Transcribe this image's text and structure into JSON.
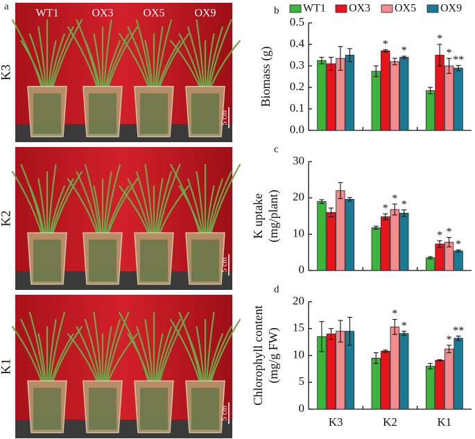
{
  "photo_panel": {
    "label": "a",
    "columns": [
      "WT1",
      "OX3",
      "OX5",
      "OX9"
    ],
    "rows": [
      "K3",
      "K2",
      "K1"
    ],
    "scale": "5 cm"
  },
  "chart_data": [
    {
      "type": "bar",
      "panel": "b",
      "ylabel": "Biomass (g)",
      "ylim": [
        0,
        0.5
      ],
      "yticks": [
        {
          "value": 0,
          "label": "0.0"
        },
        0.1,
        0.2,
        0.3,
        0.4,
        0.5
      ],
      "series": [
        {
          "name": "WT1",
          "color": "#3db53d",
          "values": [
            0.325,
            0.275,
            0.185
          ],
          "errors": [
            0.015,
            0.025,
            0.015
          ],
          "annotations": [
            null,
            null,
            null
          ]
        },
        {
          "name": "OX3",
          "color": "#e8141b",
          "values": [
            0.31,
            0.37,
            0.35
          ],
          "errors": [
            0.03,
            0.005,
            0.05
          ],
          "annotations": [
            null,
            "*",
            "*"
          ]
        },
        {
          "name": "OX5",
          "color": "#f28b8e",
          "values": [
            0.335,
            0.32,
            0.3
          ],
          "errors": [
            0.055,
            0.015,
            0.035
          ],
          "annotations": [
            null,
            null,
            "*"
          ]
        },
        {
          "name": "OX9",
          "color": "#1a7a94",
          "values": [
            0.35,
            0.34,
            0.29
          ],
          "errors": [
            0.03,
            0.005,
            0.012
          ],
          "annotations": [
            null,
            "*",
            "**"
          ]
        }
      ]
    },
    {
      "type": "bar",
      "panel": "c",
      "ylabel": [
        "K uptake",
        "(mg/plant)"
      ],
      "ylim": [
        0,
        30
      ],
      "yticks": [
        0,
        10,
        20,
        30
      ],
      "series": [
        {
          "color": "#3db53d",
          "values": [
            19,
            11.8,
            3.5
          ],
          "errors": [
            0.5,
            0.4,
            0.3
          ],
          "annotations": [
            null,
            null,
            null
          ]
        },
        {
          "color": "#e8141b",
          "values": [
            16,
            14.8,
            7.3
          ],
          "errors": [
            1.2,
            0.8,
            0.9
          ],
          "annotations": [
            null,
            "*",
            "*"
          ]
        },
        {
          "color": "#f28b8e",
          "values": [
            22,
            16.8,
            7.8
          ],
          "errors": [
            2.2,
            1.5,
            1.3
          ],
          "annotations": [
            null,
            "*",
            "*"
          ]
        },
        {
          "color": "#1a7a94",
          "values": [
            19.6,
            15.8,
            5.4
          ],
          "errors": [
            0.5,
            0.9,
            0.3
          ],
          "annotations": [
            null,
            "*",
            "*"
          ]
        }
      ]
    },
    {
      "type": "bar",
      "panel": "d",
      "ylabel": [
        "Chlorophyll content",
        "(mg/g FW)"
      ],
      "categories": [
        "K3",
        "K2",
        "K1"
      ],
      "ylim": [
        0,
        20
      ],
      "yticks": [
        0,
        5,
        10,
        15,
        20
      ],
      "series": [
        {
          "color": "#3db53d",
          "values": [
            13.5,
            9.5,
            8
          ],
          "errors": [
            2.8,
            1,
            0.5
          ],
          "annotations": [
            null,
            null,
            null
          ]
        },
        {
          "color": "#e8141b",
          "values": [
            14,
            10.8,
            9.1
          ],
          "errors": [
            1,
            0.2,
            0.1
          ],
          "annotations": [
            null,
            null,
            null
          ]
        },
        {
          "color": "#f28b8e",
          "values": [
            14.5,
            15.3,
            11.2
          ],
          "errors": [
            2,
            1.4,
            0.7
          ],
          "annotations": [
            null,
            "*",
            "*"
          ]
        },
        {
          "color": "#1a7a94",
          "values": [
            14.5,
            14.1,
            13.2
          ],
          "errors": [
            2.6,
            0.4,
            0.4
          ],
          "annotations": [
            null,
            "*",
            "**"
          ]
        }
      ]
    }
  ]
}
